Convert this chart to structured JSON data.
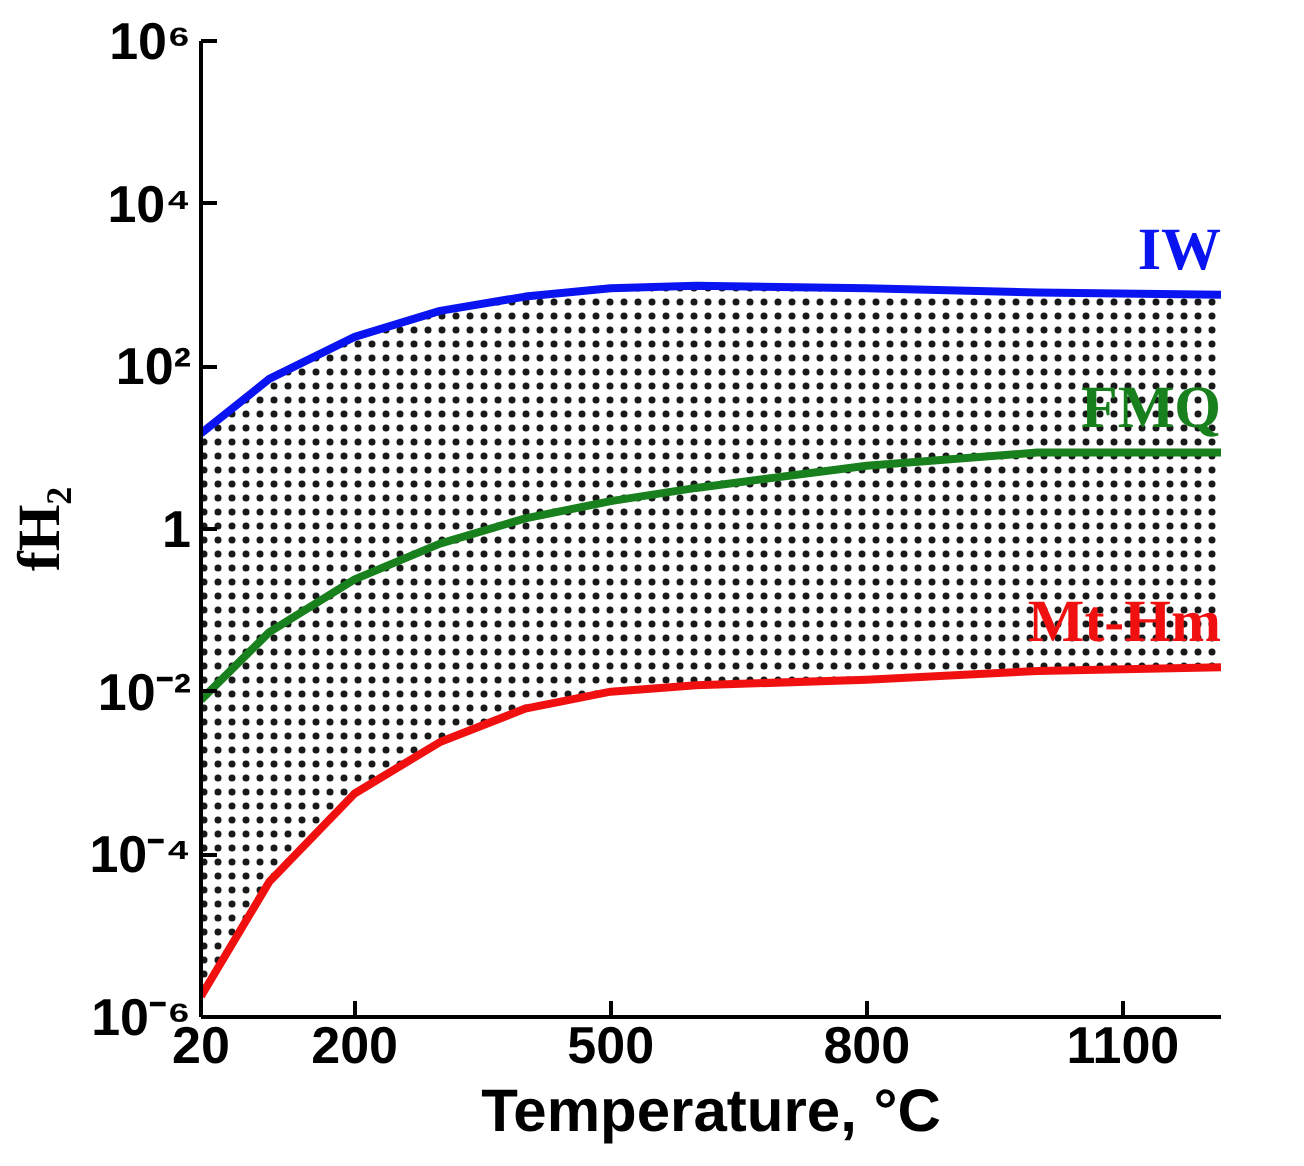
{
  "chart_data": {
    "type": "line",
    "xlabel": "Temperature, °C",
    "ylabel": "fH₂",
    "log": "y",
    "grid": false,
    "marker": "none",
    "line_style": "solid",
    "xlim": [
      20,
      1215
    ],
    "xticks": [
      20,
      200,
      500,
      800,
      1100
    ],
    "ylim": [
      1e-06,
      1000000.0
    ],
    "yticks": [
      {
        "value": 1e-06,
        "label": "10⁻⁶"
      },
      {
        "value": 0.0001,
        "label": "10⁻⁴"
      },
      {
        "value": 0.01,
        "label": "10⁻²"
      },
      1,
      {
        "value": 100,
        "label": "10²"
      },
      {
        "value": 10000,
        "label": "10⁴"
      },
      {
        "value": 1000000,
        "label": "10⁶"
      }
    ],
    "x": [
      20,
      100,
      200,
      300,
      400,
      500,
      600,
      800,
      1000,
      1215
    ],
    "series": [
      {
        "name": "IW",
        "color": "#0a14f0",
        "values": [
          15,
          70,
          230,
          480,
          720,
          910,
          980,
          910,
          810,
          760
        ]
      },
      {
        "name": "FMQ",
        "color": "#18801c",
        "values": [
          0.0079,
          0.054,
          0.24,
          0.66,
          1.35,
          2.2,
          3.2,
          6.0,
          8.7,
          8.7
        ],
        "lower": [
          1.8e-06,
          4.6e-05,
          0.00056,
          0.0024,
          0.0062,
          0.01,
          0.012,
          0.014,
          0.018,
          0.02
        ],
        "upper": [
          15,
          70,
          230,
          480,
          720,
          910,
          980,
          910,
          810,
          760
        ]
      },
      {
        "name": "Mt-Hm",
        "color": "#f01010",
        "values": [
          1.8e-06,
          4.6e-05,
          0.00056,
          0.0024,
          0.0062,
          0.01,
          0.012,
          0.014,
          0.018,
          0.02
        ]
      }
    ]
  }
}
